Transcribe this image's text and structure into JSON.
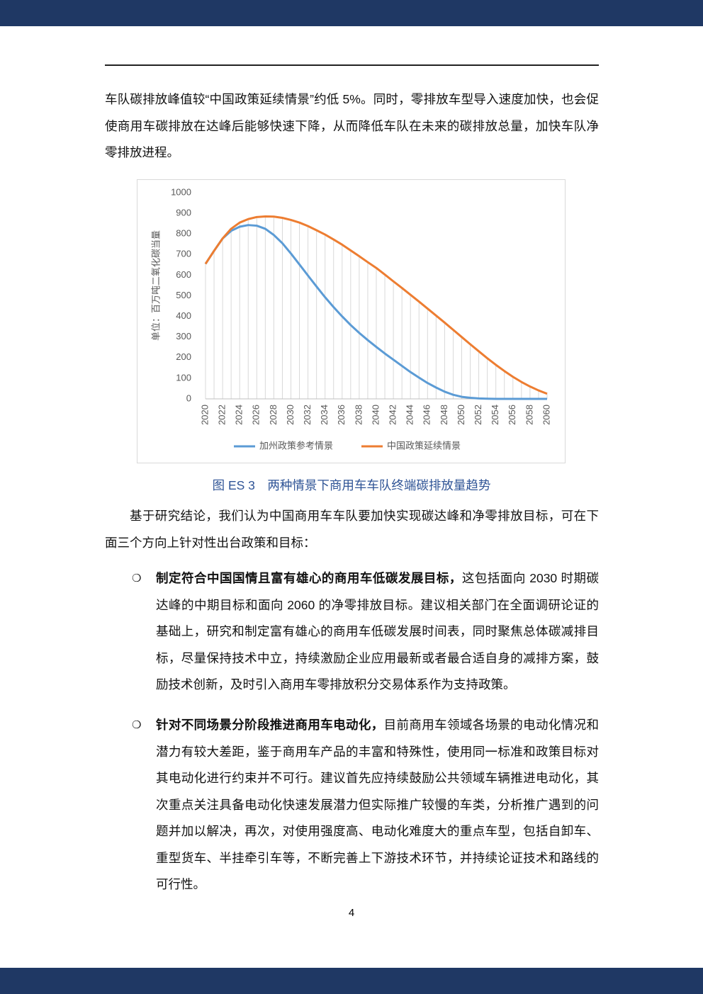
{
  "document": {
    "paragraphs": [
      "车队碳排放峰值较“中国政策延续情景”约低 5%。同时，零排放车型导入速度加快，也会促使商用车碳排放在达峰后能够快速下降，从而降低车队在未来的碳排放总量，加快车队净零排放进程。",
      "基于研究结论，我们认为中国商用车车队要加快实现碳达峰和净零排放目标，可在下面三个方向上针对性出台政策和目标："
    ],
    "caption": "图 ES 3　两种情景下商用车车队终端碳排放量趋势",
    "bullets": [
      {
        "lead": "制定符合中国国情且富有雄心的商用车低碳发展目标，",
        "text": "这包括面向 2030 时期碳达峰的中期目标和面向 2060 的净零排放目标。建议相关部门在全面调研论证的基础上，研究和制定富有雄心的商用车低碳发展时间表，同时聚焦总体碳减排目标，尽量保持技术中立，持续激励企业应用最新或者最合适自身的减排方案，鼓励技术创新，及时引入商用车零排放积分交易体系作为支持政策。"
      },
      {
        "lead": "针对不同场景分阶段推进商用车电动化，",
        "text": "目前商用车领域各场景的电动化情况和潜力有较大差距，鉴于商用车产品的丰富和特殊性，使用同一标准和政策目标对其电动化进行约束并不可行。建议首先应持续鼓励公共领域车辆推进电动化，其次重点关注具备电动化快速发展潜力但实际推广较慢的车类，分析推广遇到的问题并加以解决，再次，对使用强度高、电动化难度大的重点车型，包括自卸车、重型货车、半挂牵引车等，不断完善上下游技术环节，并持续论证技术和路线的可行性。"
      }
    ],
    "page_number": "4"
  },
  "chart_data": {
    "type": "line",
    "y_label": "单位：百万吨二氧化碳当量",
    "x": [
      2020,
      2021,
      2022,
      2023,
      2024,
      2025,
      2026,
      2027,
      2028,
      2029,
      2030,
      2031,
      2032,
      2033,
      2034,
      2035,
      2036,
      2037,
      2038,
      2039,
      2040,
      2041,
      2042,
      2043,
      2044,
      2045,
      2046,
      2047,
      2048,
      2049,
      2050,
      2051,
      2052,
      2053,
      2054,
      2055,
      2056,
      2057,
      2058,
      2059,
      2060
    ],
    "xlim": [
      2020,
      2060
    ],
    "xticks": [
      2020,
      2022,
      2024,
      2026,
      2028,
      2030,
      2032,
      2034,
      2036,
      2038,
      2040,
      2042,
      2044,
      2046,
      2048,
      2050,
      2052,
      2054,
      2056,
      2058,
      2060
    ],
    "ylim": [
      0,
      1000
    ],
    "yticks": [
      0,
      100,
      200,
      300,
      400,
      500,
      600,
      700,
      800,
      900,
      1000
    ],
    "drop_lines": true,
    "series": [
      {
        "name": "加州政策参考情景",
        "color": "#5b9bd5",
        "values": [
          655,
          718,
          778,
          815,
          835,
          843,
          840,
          825,
          795,
          755,
          705,
          652,
          598,
          545,
          493,
          445,
          400,
          358,
          320,
          285,
          252,
          220,
          190,
          160,
          130,
          103,
          77,
          55,
          35,
          20,
          10,
          5,
          2,
          1,
          0,
          0,
          0,
          0,
          0,
          0,
          0
        ]
      },
      {
        "name": "中国政策延续情景",
        "color": "#ed7d31",
        "values": [
          655,
          718,
          778,
          825,
          855,
          872,
          882,
          885,
          884,
          878,
          868,
          855,
          838,
          818,
          797,
          773,
          748,
          720,
          692,
          663,
          635,
          603,
          570,
          538,
          505,
          472,
          438,
          404,
          370,
          335,
          300,
          265,
          231,
          197,
          165,
          135,
          107,
          82,
          60,
          41,
          25
        ]
      }
    ]
  }
}
